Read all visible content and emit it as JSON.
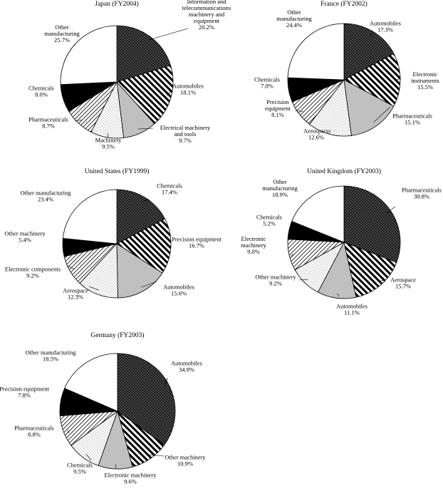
{
  "chart_data": [
    {
      "type": "pie",
      "title": "Japan (FY2004)",
      "slices": [
        {
          "label": [
            "Information and",
            "telecommunications",
            "machinery and",
            "equipment"
          ],
          "pct_label": "20.2%",
          "value": 20.2,
          "pattern": "dots-dark"
        },
        {
          "label": [
            "Automobiles"
          ],
          "pct_label": "18.1%",
          "value": 18.1,
          "pattern": "stripes"
        },
        {
          "label": [
            "Electrical machinery",
            "and tools"
          ],
          "pct_label": "9.7%",
          "value": 9.7,
          "pattern": "gray"
        },
        {
          "label": [
            "Machinery"
          ],
          "pct_label": "9.5%",
          "value": 9.5,
          "pattern": "dots-light"
        },
        {
          "label": [
            "Pharmaceuticals"
          ],
          "pct_label": "8.7%",
          "value": 8.7,
          "pattern": "hatch-light"
        },
        {
          "label": [
            "Chemicals"
          ],
          "pct_label": "8.0%",
          "value": 8.0,
          "pattern": "black"
        },
        {
          "label": [
            "Other",
            "manufacturing"
          ],
          "pct_label": "25.7%",
          "value": 25.7,
          "pattern": "white"
        }
      ]
    },
    {
      "type": "pie",
      "title": "France (FY2002)",
      "slices": [
        {
          "label": [
            "Automobiles"
          ],
          "pct_label": "17.3%",
          "value": 17.3,
          "pattern": "dots-dark"
        },
        {
          "label": [
            "Electronic",
            "instruments"
          ],
          "pct_label": "15.5%",
          "value": 15.5,
          "pattern": "stripes"
        },
        {
          "label": [
            "Pharmaceuticals"
          ],
          "pct_label": "15.1%",
          "value": 15.1,
          "pattern": "gray"
        },
        {
          "label": [
            "Aerospace"
          ],
          "pct_label": "12.6%",
          "value": 12.6,
          "pattern": "dots-light"
        },
        {
          "label": [
            "Precision",
            "equipment"
          ],
          "pct_label": "8.1%",
          "value": 8.1,
          "pattern": "hatch-light"
        },
        {
          "label": [
            "Chemicals"
          ],
          "pct_label": "7.0%",
          "value": 7.0,
          "pattern": "black"
        },
        {
          "label": [
            "Other",
            "manufacturing"
          ],
          "pct_label": "24.4%",
          "value": 24.4,
          "pattern": "white"
        }
      ]
    },
    {
      "type": "pie",
      "title": "United States (FY1999)",
      "slices": [
        {
          "label": [
            "Chemicals"
          ],
          "pct_label": "17.4%",
          "value": 17.4,
          "pattern": "dots-dark"
        },
        {
          "label": [
            "Precision equipment"
          ],
          "pct_label": "16.7%",
          "value": 16.7,
          "pattern": "stripes"
        },
        {
          "label": [
            "Automobiles"
          ],
          "pct_label": "15.6%",
          "value": 15.6,
          "pattern": "gray"
        },
        {
          "label": [
            "Aerospace"
          ],
          "pct_label": "12.3%",
          "value": 12.3,
          "pattern": "dots-light"
        },
        {
          "label": [
            "Electronic components"
          ],
          "pct_label": "9.2%",
          "value": 9.2,
          "pattern": "hatch-light"
        },
        {
          "label": [
            "Other machinery"
          ],
          "pct_label": "5.4%",
          "value": 5.4,
          "pattern": "black"
        },
        {
          "label": [
            "Other manufacturing"
          ],
          "pct_label": "23.4%",
          "value": 23.4,
          "pattern": "white"
        }
      ]
    },
    {
      "type": "pie",
      "title": "United Kingdom (FY2003)",
      "slices": [
        {
          "label": [
            "Pharmaceuticals"
          ],
          "pct_label": "30.8%",
          "value": 30.8,
          "pattern": "dots-dark"
        },
        {
          "label": [
            "Aerospace"
          ],
          "pct_label": "15.7%",
          "value": 15.7,
          "pattern": "stripes"
        },
        {
          "label": [
            "Automobiles"
          ],
          "pct_label": "11.1%",
          "value": 11.1,
          "pattern": "gray"
        },
        {
          "label": [
            "Other machinery"
          ],
          "pct_label": "9.2%",
          "value": 9.2,
          "pattern": "dots-light"
        },
        {
          "label": [
            "Electronic",
            "machinery"
          ],
          "pct_label": "9.0%",
          "value": 9.0,
          "pattern": "hatch-light"
        },
        {
          "label": [
            "Chemicals"
          ],
          "pct_label": "5.2%",
          "value": 5.2,
          "pattern": "black"
        },
        {
          "label": [
            "Other",
            "manufacturing"
          ],
          "pct_label": "18.9%",
          "value": 18.9,
          "pattern": "white"
        }
      ]
    },
    {
      "type": "pie",
      "title": "Germany (FY2003)",
      "slices": [
        {
          "label": [
            "Automobiles"
          ],
          "pct_label": "34.9%",
          "value": 34.9,
          "pattern": "dots-dark"
        },
        {
          "label": [
            "Other machinery"
          ],
          "pct_label": "10.9%",
          "value": 10.9,
          "pattern": "stripes"
        },
        {
          "label": [
            "Electronic machinery"
          ],
          "pct_label": "9.6%",
          "value": 9.6,
          "pattern": "gray"
        },
        {
          "label": [
            "Chemicals"
          ],
          "pct_label": "9.5%",
          "value": 9.5,
          "pattern": "dots-light"
        },
        {
          "label": [
            "Pharmaceuticals"
          ],
          "pct_label": "8.8%",
          "value": 8.8,
          "pattern": "hatch-light"
        },
        {
          "label": [
            "Precision equipment"
          ],
          "pct_label": "7.8%",
          "value": 7.8,
          "pattern": "black"
        },
        {
          "label": [
            "Other manufacturing"
          ],
          "pct_label": "18.5%",
          "value": 18.5,
          "pattern": "white"
        }
      ]
    }
  ]
}
